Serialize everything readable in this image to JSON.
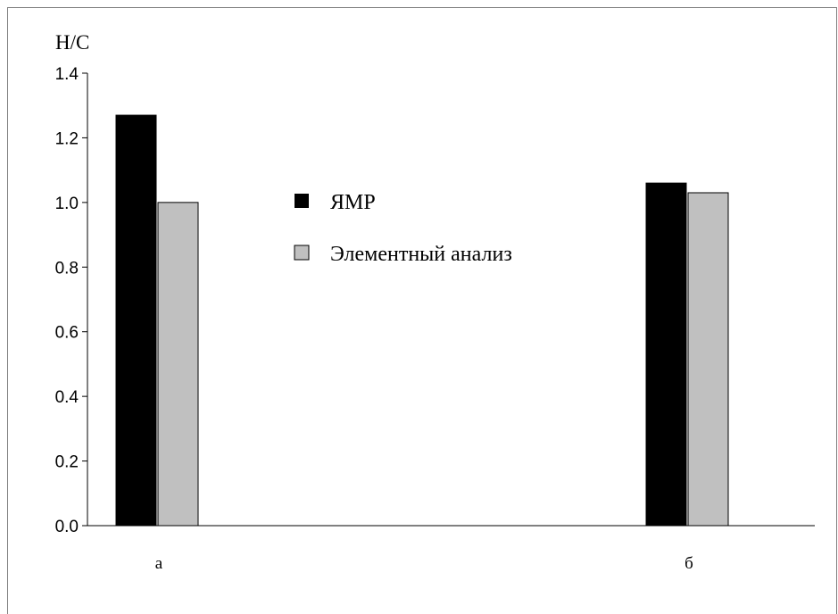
{
  "chart_data": {
    "type": "bar",
    "ylabel": "Н/С",
    "xlabel": "",
    "title": "",
    "categories": [
      "а",
      "б"
    ],
    "series": [
      {
        "name": "ЯМР",
        "values": [
          1.27,
          1.06
        ],
        "color": "#000000"
      },
      {
        "name": "Элементный анализ",
        "values": [
          1.0,
          1.03
        ],
        "color": "#c0c0c0"
      }
    ],
    "ylim": [
      0,
      1.4
    ],
    "yticks": [
      "0.0",
      "0.2",
      "0.4",
      "0.6",
      "0.8",
      "1.0",
      "1.2",
      "1.4"
    ],
    "grid": false,
    "legend_position": "center"
  }
}
